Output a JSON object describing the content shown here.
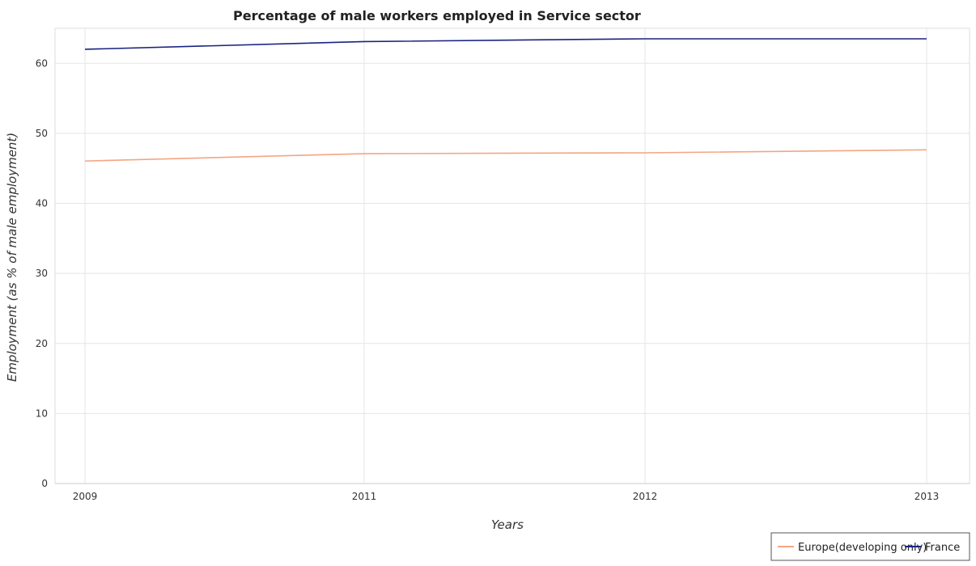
{
  "chart_data": {
    "type": "line",
    "title": "Percentage of male workers employed in Service sector",
    "xlabel": "Years",
    "ylabel": "Employment (as % of male employment)",
    "categories": [
      "2009",
      "2011",
      "2012",
      "2013"
    ],
    "ylim": [
      0,
      65
    ],
    "yticks": [
      0,
      10,
      20,
      30,
      40,
      50,
      60
    ],
    "grid": true,
    "legend_position": "bottom-right",
    "series": [
      {
        "name": "Europe(developing only)",
        "color": "#f4a582",
        "values": [
          46.05,
          47.1,
          47.22,
          47.65
        ]
      },
      {
        "name": "France",
        "color": "#1a237e",
        "values": [
          62.0,
          63.1,
          63.5,
          63.5
        ]
      }
    ]
  }
}
